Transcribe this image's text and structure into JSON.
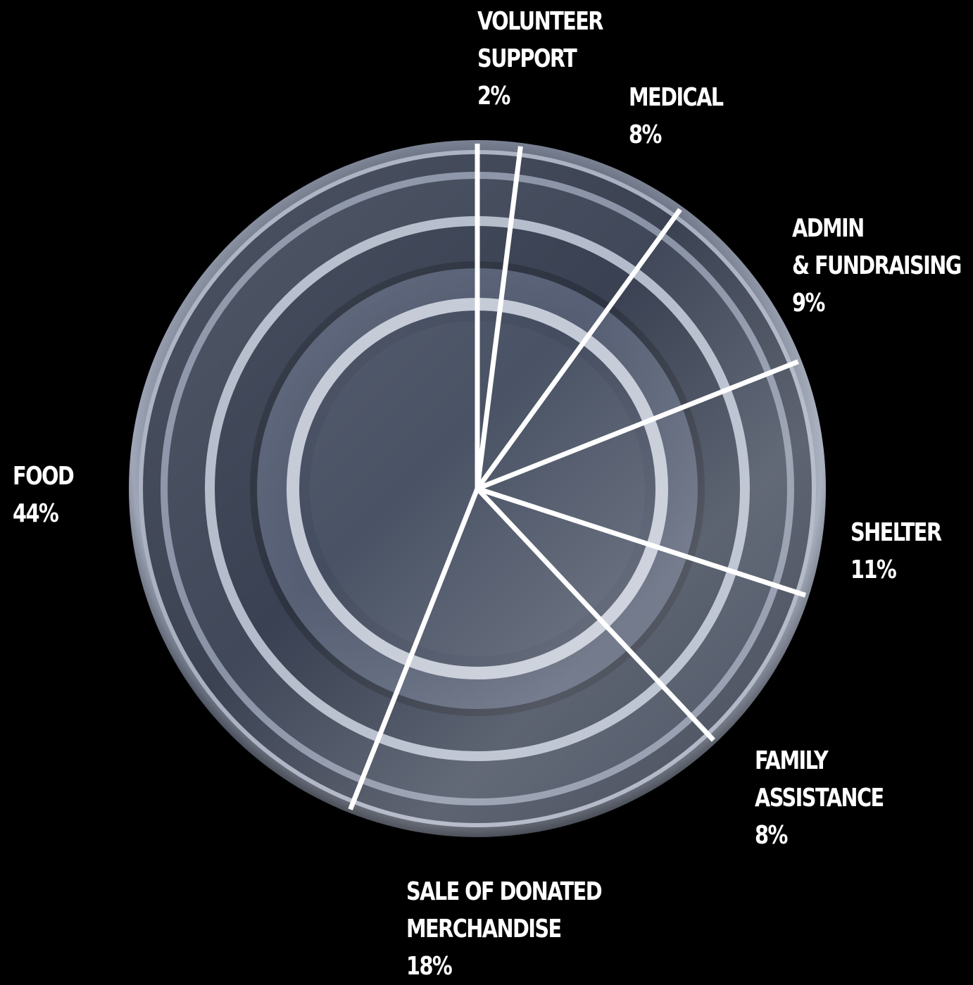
{
  "chart_data": {
    "type": "pie",
    "categories": [
      "VOLUNTEER SUPPORT",
      "MEDICAL",
      "ADMIN & FUNDRAISING",
      "SHELTER",
      "FAMILY ASSISTANCE",
      "SALE OF DONATED MERCHANDISE",
      "FOOD"
    ],
    "values": [
      2,
      8,
      9,
      11,
      8,
      18,
      44
    ],
    "unit": "%",
    "title": "",
    "slice_divider_color": "#ffffff",
    "background": "#000000",
    "pie_style": "metal can lid"
  },
  "labels": {
    "volunteer": {
      "line1": "VOLUNTEER",
      "line2": "SUPPORT",
      "pct": "2%"
    },
    "medical": {
      "line1": "MEDICAL",
      "pct": "8%"
    },
    "admin": {
      "line1": "ADMIN",
      "line2": "& FUNDRAISING",
      "pct": "9%"
    },
    "shelter": {
      "line1": "SHELTER",
      "pct": "11%"
    },
    "family": {
      "line1": "FAMILY",
      "line2": "ASSISTANCE",
      "pct": "8%"
    },
    "sale": {
      "line1": "SALE OF DONATED",
      "line2": "MERCHANDISE",
      "pct": "18%"
    },
    "food": {
      "line1": "FOOD",
      "pct": "44%"
    }
  }
}
